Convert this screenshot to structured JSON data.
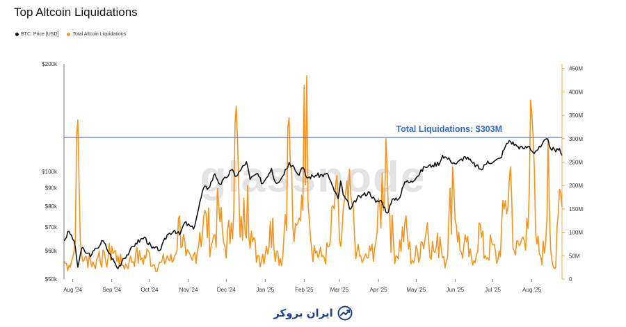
{
  "chart_data": {
    "type": "line",
    "title": "Top Altcoin Liquidations",
    "legend_position": "top-left",
    "grid": false,
    "x_ticks": [
      "Aug '24",
      "Sep '24",
      "Oct '24",
      "Nov '24",
      "Dec '24",
      "Jan '25",
      "Feb '25",
      "Mar '25",
      "Apr '25",
      "May '25",
      "Jun '25",
      "Jul '25",
      "Aug '25"
    ],
    "x_range": [
      "2024-07-25",
      "2025-08-25"
    ],
    "y_left": {
      "scale": "log",
      "range": [
        50000,
        200000
      ],
      "ticks": [
        "$50k",
        "$60k",
        "$70k",
        "$80k",
        "$90k",
        "$100k",
        "$200k"
      ],
      "tick_values": [
        50000,
        60000,
        70000,
        80000,
        90000,
        100000,
        200000
      ]
    },
    "y_right": {
      "scale": "linear",
      "range": [
        0,
        460
      ],
      "ticks": [
        "0",
        "50M",
        "100M",
        "150M",
        "200M",
        "250M",
        "300M",
        "350M",
        "400M",
        "450M"
      ],
      "tick_values": [
        0,
        50,
        100,
        150,
        200,
        250,
        300,
        350,
        400,
        450
      ]
    },
    "series": [
      {
        "name": "BTC: Price [USD]",
        "axis": "left",
        "color": "#111111",
        "points": [
          [
            "2024-07-25",
            64000
          ],
          [
            "2024-07-29",
            68000
          ],
          [
            "2024-08-02",
            64000
          ],
          [
            "2024-08-05",
            54000
          ],
          [
            "2024-08-08",
            61000
          ],
          [
            "2024-08-12",
            59000
          ],
          [
            "2024-08-16",
            58500
          ],
          [
            "2024-08-20",
            61000
          ],
          [
            "2024-08-25",
            64000
          ],
          [
            "2024-08-30",
            59000
          ],
          [
            "2024-09-06",
            53500
          ],
          [
            "2024-09-10",
            57000
          ],
          [
            "2024-09-15",
            59500
          ],
          [
            "2024-09-20",
            63000
          ],
          [
            "2024-09-27",
            65500
          ],
          [
            "2024-10-03",
            61000
          ],
          [
            "2024-10-10",
            60500
          ],
          [
            "2024-10-15",
            66500
          ],
          [
            "2024-10-21",
            68500
          ],
          [
            "2024-10-25",
            66500
          ],
          [
            "2024-10-29",
            72000
          ],
          [
            "2024-11-05",
            69000
          ],
          [
            "2024-11-08",
            76000
          ],
          [
            "2024-11-13",
            90000
          ],
          [
            "2024-11-17",
            90000
          ],
          [
            "2024-11-22",
            98500
          ],
          [
            "2024-11-26",
            92000
          ],
          [
            "2024-12-01",
            96000
          ],
          [
            "2024-12-05",
            101000
          ],
          [
            "2024-12-09",
            97000
          ],
          [
            "2024-12-13",
            101500
          ],
          [
            "2024-12-17",
            106500
          ],
          [
            "2024-12-20",
            95000
          ],
          [
            "2024-12-25",
            98500
          ],
          [
            "2024-12-30",
            92500
          ],
          [
            "2025-01-06",
            102000
          ],
          [
            "2025-01-09",
            93500
          ],
          [
            "2025-01-13",
            94500
          ],
          [
            "2025-01-20",
            106000
          ],
          [
            "2025-01-23",
            104000
          ],
          [
            "2025-01-27",
            98000
          ],
          [
            "2025-01-31",
            102500
          ],
          [
            "2025-02-03",
            96000
          ],
          [
            "2025-02-10",
            97500
          ],
          [
            "2025-02-20",
            98000
          ],
          [
            "2025-02-25",
            88000
          ],
          [
            "2025-02-28",
            84000
          ],
          [
            "2025-03-02",
            94000
          ],
          [
            "2025-03-04",
            86000
          ],
          [
            "2025-03-10",
            78500
          ],
          [
            "2025-03-15",
            84000
          ],
          [
            "2025-03-20",
            86000
          ],
          [
            "2025-03-25",
            87500
          ],
          [
            "2025-03-30",
            82000
          ],
          [
            "2025-04-03",
            83000
          ],
          [
            "2025-04-08",
            76500
          ],
          [
            "2025-04-13",
            84000
          ],
          [
            "2025-04-18",
            84500
          ],
          [
            "2025-04-22",
            93500
          ],
          [
            "2025-04-27",
            94000
          ],
          [
            "2025-05-02",
            97000
          ],
          [
            "2025-05-08",
            103000
          ],
          [
            "2025-05-14",
            104000
          ],
          [
            "2025-05-20",
            106000
          ],
          [
            "2025-05-22",
            111000
          ],
          [
            "2025-05-28",
            107500
          ],
          [
            "2025-06-02",
            105000
          ],
          [
            "2025-06-09",
            110000
          ],
          [
            "2025-06-15",
            105500
          ],
          [
            "2025-06-22",
            101000
          ],
          [
            "2025-06-27",
            107000
          ],
          [
            "2025-07-01",
            106000
          ],
          [
            "2025-07-07",
            109000
          ],
          [
            "2025-07-11",
            117500
          ],
          [
            "2025-07-14",
            122000
          ],
          [
            "2025-07-20",
            118000
          ],
          [
            "2025-07-25",
            116000
          ],
          [
            "2025-07-30",
            117500
          ],
          [
            "2025-08-02",
            113000
          ],
          [
            "2025-08-08",
            117000
          ],
          [
            "2025-08-13",
            123500
          ],
          [
            "2025-08-15",
            118000
          ],
          [
            "2025-08-20",
            113500
          ],
          [
            "2025-08-23",
            116000
          ],
          [
            "2025-08-25",
            111000
          ]
        ]
      },
      {
        "name": "Total Altcoin Liquidations",
        "axis": "right",
        "color": "#f7931a",
        "unit": "M",
        "points": [
          [
            "2024-07-25",
            40
          ],
          [
            "2024-07-29",
            30
          ],
          [
            "2024-08-02",
            60
          ],
          [
            "2024-08-05",
            340
          ],
          [
            "2024-08-07",
            80
          ],
          [
            "2024-08-10",
            40
          ],
          [
            "2024-08-14",
            50
          ],
          [
            "2024-08-18",
            30
          ],
          [
            "2024-08-22",
            60
          ],
          [
            "2024-08-27",
            40
          ],
          [
            "2024-09-01",
            70
          ],
          [
            "2024-09-06",
            50
          ],
          [
            "2024-09-10",
            30
          ],
          [
            "2024-09-15",
            40
          ],
          [
            "2024-09-20",
            55
          ],
          [
            "2024-09-25",
            45
          ],
          [
            "2024-09-30",
            60
          ],
          [
            "2024-10-05",
            30
          ],
          [
            "2024-10-10",
            35
          ],
          [
            "2024-10-15",
            50
          ],
          [
            "2024-10-20",
            40
          ],
          [
            "2024-10-25",
            135
          ],
          [
            "2024-10-30",
            50
          ],
          [
            "2024-11-04",
            40
          ],
          [
            "2024-11-10",
            100
          ],
          [
            "2024-11-15",
            140
          ],
          [
            "2024-11-20",
            80
          ],
          [
            "2024-11-25",
            160
          ],
          [
            "2024-11-30",
            70
          ],
          [
            "2024-12-05",
            120
          ],
          [
            "2024-12-09",
            370
          ],
          [
            "2024-12-12",
            90
          ],
          [
            "2024-12-18",
            200
          ],
          [
            "2024-12-22",
            80
          ],
          [
            "2024-12-27",
            50
          ],
          [
            "2025-01-02",
            70
          ],
          [
            "2025-01-07",
            130
          ],
          [
            "2025-01-10",
            60
          ],
          [
            "2025-01-15",
            50
          ],
          [
            "2025-01-20",
            345
          ],
          [
            "2025-01-24",
            80
          ],
          [
            "2025-01-28",
            130
          ],
          [
            "2025-02-03",
            435
          ],
          [
            "2025-02-06",
            90
          ],
          [
            "2025-02-11",
            60
          ],
          [
            "2025-02-16",
            50
          ],
          [
            "2025-02-21",
            70
          ],
          [
            "2025-02-26",
            200
          ],
          [
            "2025-03-02",
            70
          ],
          [
            "2025-03-04",
            150
          ],
          [
            "2025-03-10",
            180
          ],
          [
            "2025-03-15",
            60
          ],
          [
            "2025-03-20",
            40
          ],
          [
            "2025-03-26",
            60
          ],
          [
            "2025-03-31",
            100
          ],
          [
            "2025-04-07",
            300
          ],
          [
            "2025-04-10",
            140
          ],
          [
            "2025-04-15",
            50
          ],
          [
            "2025-04-22",
            120
          ],
          [
            "2025-04-28",
            40
          ],
          [
            "2025-05-05",
            80
          ],
          [
            "2025-05-10",
            120
          ],
          [
            "2025-05-15",
            60
          ],
          [
            "2025-05-20",
            90
          ],
          [
            "2025-05-25",
            40
          ],
          [
            "2025-05-30",
            240
          ],
          [
            "2025-06-05",
            60
          ],
          [
            "2025-06-10",
            80
          ],
          [
            "2025-06-15",
            30
          ],
          [
            "2025-06-20",
            120
          ],
          [
            "2025-06-25",
            50
          ],
          [
            "2025-06-30",
            80
          ],
          [
            "2025-07-05",
            40
          ],
          [
            "2025-07-10",
            150
          ],
          [
            "2025-07-15",
            240
          ],
          [
            "2025-07-18",
            60
          ],
          [
            "2025-07-25",
            90
          ],
          [
            "2025-07-28",
            130
          ],
          [
            "2025-08-01",
            355
          ],
          [
            "2025-08-04",
            100
          ],
          [
            "2025-08-08",
            50
          ],
          [
            "2025-08-12",
            80
          ],
          [
            "2025-08-14",
            300
          ],
          [
            "2025-08-17",
            40
          ],
          [
            "2025-08-20",
            25
          ],
          [
            "2025-08-22",
            140
          ],
          [
            "2025-08-24",
            185
          ],
          [
            "2025-08-25",
            155
          ]
        ]
      }
    ],
    "annotations": [
      {
        "label": "Total Liquidations: $303M",
        "axis": "right",
        "y": 303,
        "color": "#2f6bd3"
      }
    ],
    "watermark": "glassnode"
  },
  "footer": {
    "brand": "ایران بروکر",
    "brand_color": "#1f3f8a"
  }
}
